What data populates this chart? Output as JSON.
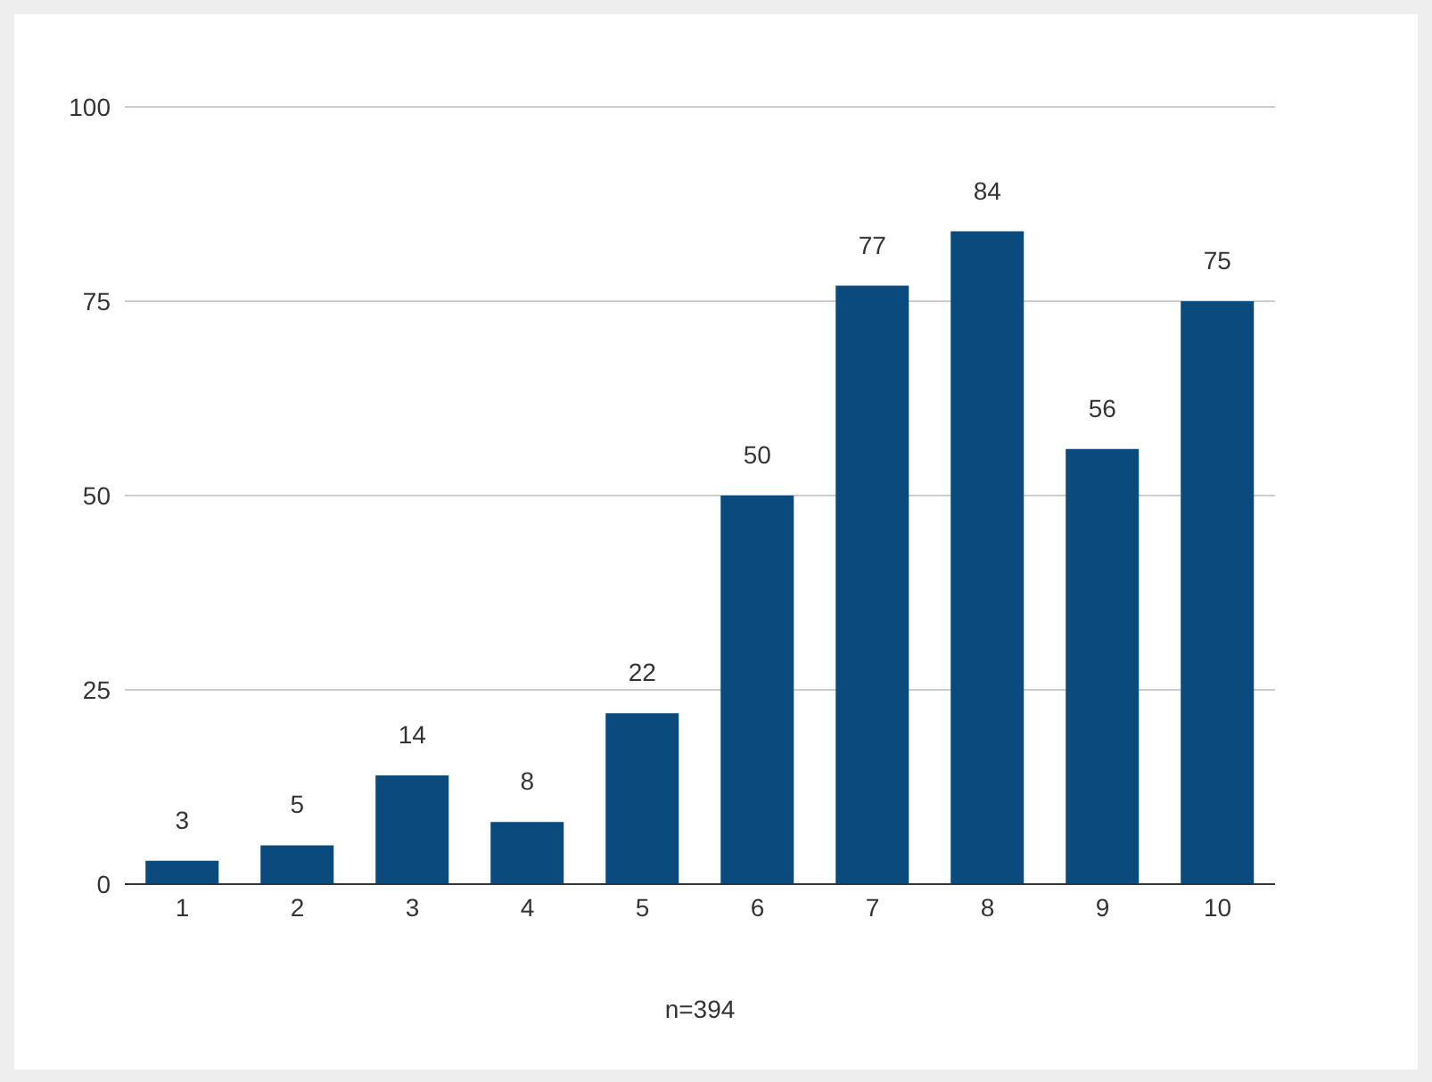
{
  "chart_data": {
    "type": "bar",
    "categories": [
      "1",
      "2",
      "3",
      "4",
      "5",
      "6",
      "7",
      "8",
      "9",
      "10"
    ],
    "values": [
      3,
      5,
      14,
      8,
      22,
      50,
      77,
      84,
      56,
      75
    ],
    "color": "#0b4a7d",
    "ylim": [
      0,
      100
    ],
    "yticks": [
      0,
      25,
      50,
      75,
      100
    ],
    "grid": "y",
    "data_labels": true,
    "annotations": [
      "n=394"
    ]
  }
}
